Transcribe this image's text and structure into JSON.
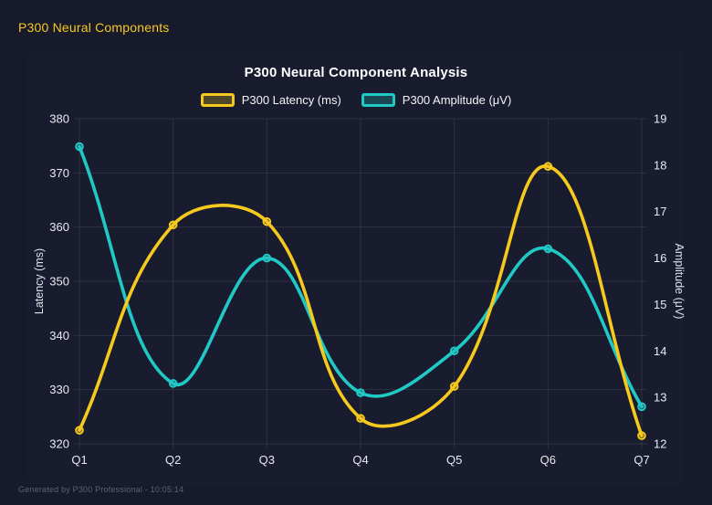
{
  "header": {
    "title": "P300 Neural Components",
    "color": "#f8c81e"
  },
  "footer": {
    "text": "Generated by P300 Professional - 10:05:14"
  },
  "chart_data": {
    "type": "line",
    "title": "P300 Neural Component Analysis",
    "categories": [
      "Q1",
      "Q2",
      "Q3",
      "Q4",
      "Q5",
      "Q6",
      "Q7"
    ],
    "series": [
      {
        "name": "P300 Amplitude (μV)",
        "axis": "right",
        "color": "#21c9c6",
        "values": [
          18.4,
          13.3,
          16.0,
          13.1,
          14.0,
          16.2,
          12.8
        ]
      },
      {
        "name": "P300 Latency (ms)",
        "axis": "left",
        "color": "#f5c91d",
        "values": [
          322.5,
          360.4,
          361.0,
          324.7,
          330.6,
          371.2,
          321.5
        ]
      }
    ],
    "legend_order": [
      1,
      0
    ],
    "left_axis": {
      "label": "Latency (ms)",
      "min": 320,
      "max": 380,
      "ticks": [
        320,
        330,
        340,
        350,
        360,
        370,
        380
      ]
    },
    "right_axis": {
      "label": "Amplitude (μV)",
      "min": 12,
      "max": 19,
      "ticks": [
        12,
        13,
        14,
        15,
        16,
        17,
        18,
        19
      ]
    },
    "grid": true,
    "grid_color": "rgba(255,255,255,0.09)",
    "legend_position": "top",
    "line_tension": 0.4
  }
}
